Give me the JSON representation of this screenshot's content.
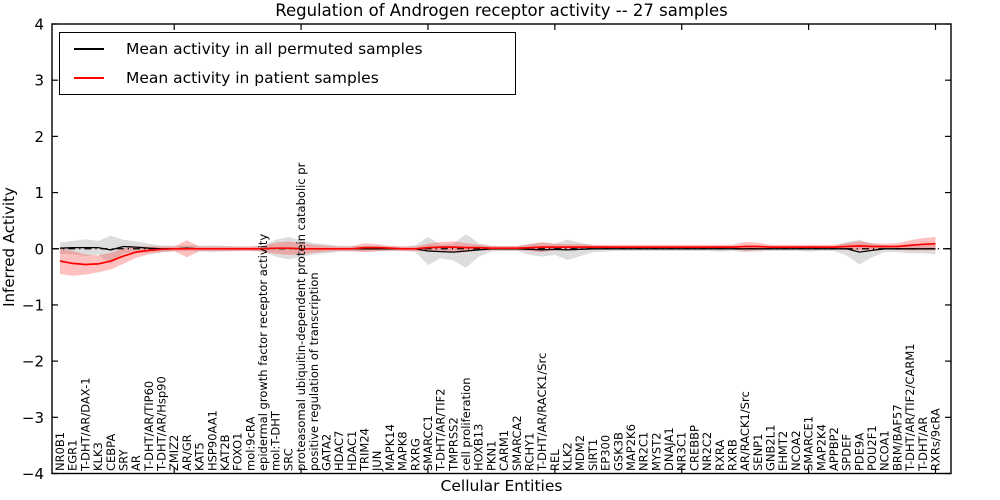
{
  "chart_data": {
    "type": "line",
    "title": "Regulation of Androgen receptor activity -- 27 samples",
    "xlabel": "Cellular Entities",
    "ylabel": "Inferred Activity",
    "ylim": [
      -4,
      4
    ],
    "ytick_labels": [
      "4",
      "3",
      "2",
      "1",
      "0",
      "−1",
      "−2",
      "−3",
      "−4"
    ],
    "grid": false,
    "legend_position": "upper left",
    "zero_line_style": "dash-dot",
    "categories": [
      "NR0B1",
      "EGR1",
      "T-DHT/AR/DAX-1",
      "KLK3",
      "CEBPA",
      "SRY",
      "AR",
      "T-DHT/AR/TIP60",
      "T-DHT/AR/Hsp90",
      "ZMIZ2",
      "AR/GR",
      "KAT5",
      "HSP90AA1",
      "KAT2B",
      "FOXO1",
      "mol:9cRA",
      "epidermal growth factor receptor activity",
      "mol:T-DHT",
      "SRC",
      "proteasomal ubiquitin-dependent protein catabolic pr",
      "positive regulation of transcription",
      "GATA2",
      "HDAC7",
      "HDAC1",
      "TRIM24",
      "JUN",
      "MAPK14",
      "MAPK8",
      "RXRG",
      "SMARCC1",
      "T-DHT/AR/TIF2",
      "TMPRSS2",
      "cell proliferation",
      "HOXB13",
      "PKN1",
      "CARM1",
      "SMARCA2",
      "RCHY1",
      "T-DHT/AR/RACK1/Src",
      "REL",
      "KLK2",
      "MDM2",
      "SIRT1",
      "EP300",
      "GSK3B",
      "MAP2K6",
      "NR2C1",
      "MYST2",
      "DNAJA1",
      "NR3C1",
      "CREBBP",
      "NR2C2",
      "RXRA",
      "RXRB",
      "AR/RACK1/Src",
      "SENP1",
      "GNB2L1",
      "EHMT2",
      "NCOA2",
      "SMARCE1",
      "MAP2K4",
      "APPBP2",
      "SPDEF",
      "PDE9A",
      "POU2F1",
      "NCOA1",
      "BRM/BAF57",
      "T-DHT/AR/TIF2/CARM1",
      "T-DHT/AR",
      "RXRs/9cRA"
    ],
    "series": [
      {
        "name": "Mean activity in all permuted samples",
        "color": "#000000",
        "band_color": "#b4b4b4",
        "band_opacity": 0.45,
        "values": [
          0.01,
          0.02,
          0.02,
          0.02,
          -0.02,
          0.04,
          0.03,
          0.01,
          0,
          0,
          0.01,
          0,
          0,
          0,
          0,
          0,
          0,
          0.01,
          0.01,
          0,
          0,
          0,
          0,
          0,
          0,
          0,
          0,
          0,
          0,
          -0.04,
          -0.05,
          -0.06,
          -0.04,
          -0.02,
          0,
          0,
          0,
          -0.01,
          -0.02,
          -0.01,
          -0.02,
          -0.01,
          0,
          0,
          0,
          0,
          0,
          0,
          0,
          0,
          0,
          0,
          0,
          0,
          0,
          0,
          0,
          0,
          0,
          0,
          0,
          0,
          0,
          -0.06,
          -0.03,
          0,
          0,
          0,
          0,
          0
        ],
        "std": [
          0.1,
          0.12,
          0.15,
          0.12,
          0.25,
          0.12,
          0.1,
          0.08,
          0.06,
          0.05,
          0.05,
          0.05,
          0.06,
          0.05,
          0.04,
          0.04,
          0.05,
          0.15,
          0.2,
          0.15,
          0.1,
          0.08,
          0.05,
          0.05,
          0.05,
          0.05,
          0.04,
          0.04,
          0.06,
          0.25,
          0.12,
          0.15,
          0.3,
          0.12,
          0.05,
          0.04,
          0.04,
          0.1,
          0.12,
          0.1,
          0.18,
          0.12,
          0.06,
          0.05,
          0.04,
          0.04,
          0.04,
          0.04,
          0.04,
          0.04,
          0.04,
          0.04,
          0.05,
          0.04,
          0.06,
          0.05,
          0.04,
          0.04,
          0.04,
          0.05,
          0.04,
          0.04,
          0.12,
          0.22,
          0.12,
          0.06,
          0.06,
          0.08,
          0.08,
          0.1
        ]
      },
      {
        "name": "Mean activity in patient samples",
        "color": "#ff0000",
        "band_color": "#ff3030",
        "band_opacity": 0.3,
        "values": [
          -0.22,
          -0.26,
          -0.28,
          -0.27,
          -0.22,
          -0.13,
          -0.06,
          -0.03,
          -0.01,
          0,
          0,
          0,
          0,
          0,
          0,
          0,
          0,
          0.01,
          0.01,
          0,
          0,
          0,
          0,
          0,
          0.02,
          0.02,
          0.01,
          0,
          0,
          0.02,
          0.03,
          0.03,
          0.02,
          0.02,
          0.01,
          0.01,
          0.01,
          0.02,
          0.03,
          0.03,
          0.03,
          0.03,
          0.03,
          0.03,
          0.03,
          0.03,
          0.03,
          0.03,
          0.03,
          0.03,
          0.03,
          0.03,
          0.03,
          0.03,
          0.04,
          0.04,
          0.03,
          0.03,
          0.03,
          0.03,
          0.03,
          0.03,
          0.04,
          0.05,
          0.04,
          0.04,
          0.04,
          0.06,
          0.08,
          0.09
        ],
        "std": [
          0.23,
          0.22,
          0.18,
          0.15,
          0.15,
          0.14,
          0.1,
          0.07,
          0.05,
          0.04,
          0.15,
          0.04,
          0.04,
          0.04,
          0.04,
          0.04,
          0.05,
          0.1,
          0.12,
          0.1,
          0.07,
          0.05,
          0.04,
          0.04,
          0.08,
          0.06,
          0.04,
          0.04,
          0.04,
          0.07,
          0.09,
          0.1,
          0.08,
          0.05,
          0.04,
          0.04,
          0.04,
          0.06,
          0.09,
          0.06,
          0.05,
          0.05,
          0.04,
          0.04,
          0.04,
          0.04,
          0.04,
          0.04,
          0.04,
          0.04,
          0.04,
          0.04,
          0.04,
          0.04,
          0.08,
          0.07,
          0.04,
          0.04,
          0.04,
          0.04,
          0.04,
          0.04,
          0.06,
          0.08,
          0.06,
          0.05,
          0.06,
          0.09,
          0.11,
          0.12
        ]
      }
    ]
  }
}
